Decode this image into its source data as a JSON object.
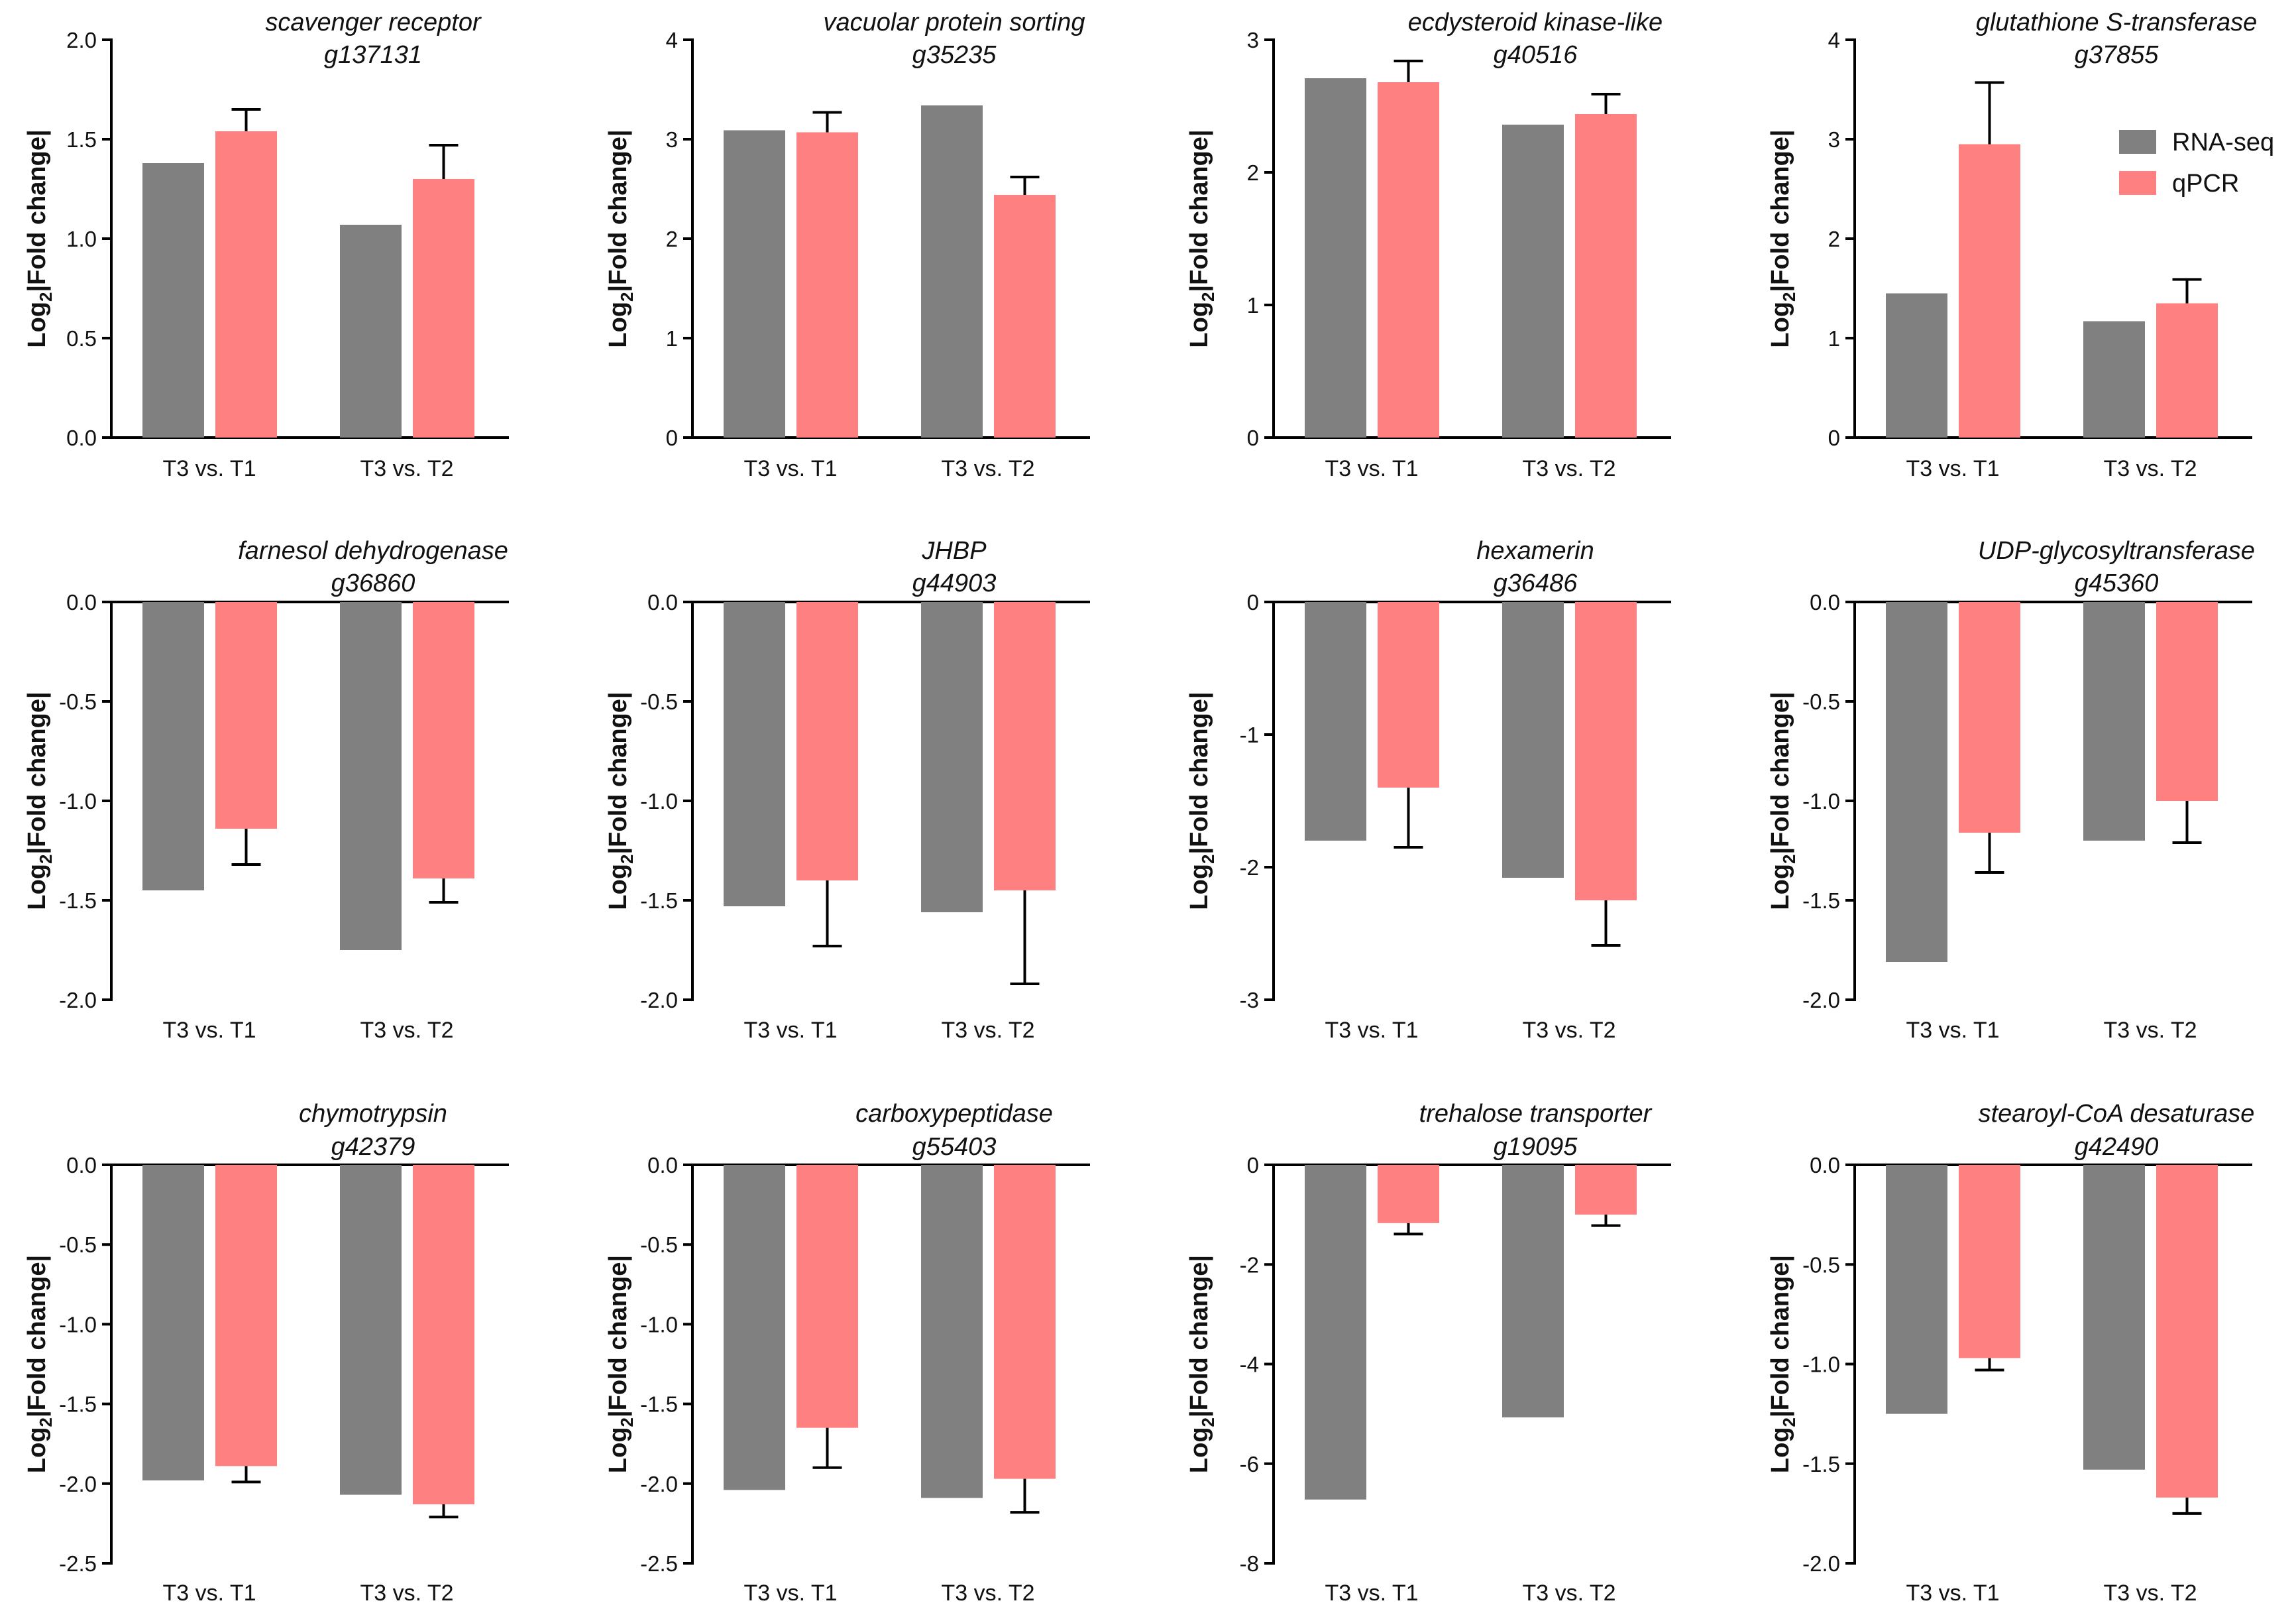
{
  "colors": {
    "rnaseq": "#808080",
    "qpcr": "#ff8080"
  },
  "legend": [
    {
      "name": "RNA-seq",
      "color": "#808080"
    },
    {
      "name": "qPCR",
      "color": "#ff8080"
    }
  ],
  "chart_data": [
    {
      "type": "bar",
      "title": "scavenger receptor",
      "subtitle": "g137131",
      "ylabel_base": "Log",
      "ylabel_sub": "2",
      "ylabel_rest": "|Fold change|",
      "categories": [
        "T3 vs. T1",
        "T3 vs. T2"
      ],
      "ylim": [
        0,
        2
      ],
      "yticks": [
        0,
        0.5,
        1,
        1.5,
        2
      ],
      "tick_labels": [
        "0.0",
        "0.5",
        "1.0",
        "1.5",
        "2.0"
      ],
      "series": [
        {
          "name": "RNA-seq",
          "values": [
            1.38,
            1.07
          ]
        },
        {
          "name": "qPCR",
          "values": [
            1.54,
            1.3
          ],
          "errors": [
            0.11,
            0.17
          ]
        }
      ]
    },
    {
      "type": "bar",
      "title": "vacuolar protein sorting",
      "subtitle": "g35235",
      "ylabel_base": "Log",
      "ylabel_sub": "2",
      "ylabel_rest": "|Fold change|",
      "categories": [
        "T3 vs. T1",
        "T3 vs. T2"
      ],
      "ylim": [
        0,
        4
      ],
      "yticks": [
        0,
        1,
        2,
        3,
        4
      ],
      "tick_labels": [
        "0",
        "1",
        "2",
        "3",
        "4"
      ],
      "series": [
        {
          "name": "RNA-seq",
          "values": [
            3.09,
            3.34
          ]
        },
        {
          "name": "qPCR",
          "values": [
            3.07,
            2.44
          ],
          "errors": [
            0.2,
            0.18
          ]
        }
      ]
    },
    {
      "type": "bar",
      "title": "ecdysteroid kinase-like",
      "subtitle": "g40516",
      "ylabel_base": "Log",
      "ylabel_sub": "2",
      "ylabel_rest": "|Fold change|",
      "categories": [
        "T3 vs. T1",
        "T3 vs. T2"
      ],
      "ylim": [
        0,
        3
      ],
      "yticks": [
        0,
        1,
        2,
        3
      ],
      "tick_labels": [
        "0",
        "1",
        "2",
        "3"
      ],
      "series": [
        {
          "name": "RNA-seq",
          "values": [
            2.71,
            2.36
          ]
        },
        {
          "name": "qPCR",
          "values": [
            2.68,
            2.44
          ],
          "errors": [
            0.16,
            0.15
          ]
        }
      ]
    },
    {
      "type": "bar",
      "title": "glutathione S-transferase",
      "subtitle": "g37855",
      "ylabel_base": "Log",
      "ylabel_sub": "2",
      "ylabel_rest": "|Fold change|",
      "categories": [
        "T3 vs. T1",
        "T3 vs. T2"
      ],
      "ylim": [
        0,
        4
      ],
      "yticks": [
        0,
        1,
        2,
        3,
        4
      ],
      "tick_labels": [
        "0",
        "1",
        "2",
        "3",
        "4"
      ],
      "legend_position": "top-right",
      "series": [
        {
          "name": "RNA-seq",
          "values": [
            1.45,
            1.17
          ]
        },
        {
          "name": "qPCR",
          "values": [
            2.95,
            1.35
          ],
          "errors": [
            0.62,
            0.24
          ]
        }
      ]
    },
    {
      "type": "bar",
      "title": "farnesol dehydrogenase",
      "subtitle": "g36860",
      "ylabel_base": "Log",
      "ylabel_sub": "2",
      "ylabel_rest": "|Fold change|",
      "categories": [
        "T3 vs. T1",
        "T3 vs. T2"
      ],
      "ylim": [
        -2,
        0
      ],
      "yticks": [
        0,
        -0.5,
        -1,
        -1.5,
        -2
      ],
      "tick_labels": [
        "0.0",
        "-0.5",
        "-1.0",
        "-1.5",
        "-2.0"
      ],
      "series": [
        {
          "name": "RNA-seq",
          "values": [
            -1.45,
            -1.75
          ]
        },
        {
          "name": "qPCR",
          "values": [
            -1.14,
            -1.39
          ],
          "errors": [
            0.18,
            0.12
          ]
        }
      ]
    },
    {
      "type": "bar",
      "title": "JHBP",
      "subtitle": "g44903",
      "ylabel_base": "Log",
      "ylabel_sub": "2",
      "ylabel_rest": "|Fold change|",
      "categories": [
        "T3 vs. T1",
        "T3 vs. T2"
      ],
      "ylim": [
        -2,
        0
      ],
      "yticks": [
        0,
        -0.5,
        -1,
        -1.5,
        -2
      ],
      "tick_labels": [
        "0.0",
        "-0.5",
        "-1.0",
        "-1.5",
        "-2.0"
      ],
      "series": [
        {
          "name": "RNA-seq",
          "values": [
            -1.53,
            -1.56
          ]
        },
        {
          "name": "qPCR",
          "values": [
            -1.4,
            -1.45
          ],
          "errors": [
            0.33,
            0.47
          ]
        }
      ]
    },
    {
      "type": "bar",
      "title": "hexamerin",
      "subtitle": "g36486",
      "ylabel_base": "Log",
      "ylabel_sub": "2",
      "ylabel_rest": "|Fold change|",
      "categories": [
        "T3 vs. T1",
        "T3 vs. T2"
      ],
      "ylim": [
        -3,
        0
      ],
      "yticks": [
        0,
        -1,
        -2,
        -3
      ],
      "tick_labels": [
        "0",
        "-1",
        "-2",
        "-3"
      ],
      "series": [
        {
          "name": "RNA-seq",
          "values": [
            -1.8,
            -2.08
          ]
        },
        {
          "name": "qPCR",
          "values": [
            -1.4,
            -2.25
          ],
          "errors": [
            0.45,
            0.34
          ]
        }
      ]
    },
    {
      "type": "bar",
      "title": "UDP-glycosyltransferase",
      "subtitle": "g45360",
      "ylabel_base": "Log",
      "ylabel_sub": "2",
      "ylabel_rest": "|Fold change|",
      "categories": [
        "T3 vs. T1",
        "T3 vs. T2"
      ],
      "ylim": [
        -2,
        0
      ],
      "yticks": [
        0,
        -0.5,
        -1,
        -1.5,
        -2
      ],
      "tick_labels": [
        "0.0",
        "-0.5",
        "-1.0",
        "-1.5",
        "-2.0"
      ],
      "series": [
        {
          "name": "RNA-seq",
          "values": [
            -1.81,
            -1.2
          ]
        },
        {
          "name": "qPCR",
          "values": [
            -1.16,
            -1.0
          ],
          "errors": [
            0.2,
            0.21
          ]
        }
      ]
    },
    {
      "type": "bar",
      "title": "chymotrypsin",
      "subtitle": "g42379",
      "ylabel_base": "Log",
      "ylabel_sub": "2",
      "ylabel_rest": "|Fold change|",
      "categories": [
        "T3 vs. T1",
        "T3 vs. T2"
      ],
      "ylim": [
        -2.5,
        0
      ],
      "yticks": [
        0,
        -0.5,
        -1,
        -1.5,
        -2,
        -2.5
      ],
      "tick_labels": [
        "0.0",
        "-0.5",
        "-1.0",
        "-1.5",
        "-2.0",
        "-2.5"
      ],
      "series": [
        {
          "name": "RNA-seq",
          "values": [
            -1.98,
            -2.07
          ]
        },
        {
          "name": "qPCR",
          "values": [
            -1.89,
            -2.13
          ],
          "errors": [
            0.1,
            0.08
          ]
        }
      ]
    },
    {
      "type": "bar",
      "title": "carboxypeptidase",
      "subtitle": "g55403",
      "ylabel_base": "Log",
      "ylabel_sub": "2",
      "ylabel_rest": "|Fold change|",
      "categories": [
        "T3 vs. T1",
        "T3 vs. T2"
      ],
      "ylim": [
        -2.5,
        0
      ],
      "yticks": [
        0,
        -0.5,
        -1,
        -1.5,
        -2,
        -2.5
      ],
      "tick_labels": [
        "0.0",
        "-0.5",
        "-1.0",
        "-1.5",
        "-2.0",
        "-2.5"
      ],
      "series": [
        {
          "name": "RNA-seq",
          "values": [
            -2.04,
            -2.09
          ]
        },
        {
          "name": "qPCR",
          "values": [
            -1.65,
            -1.97
          ],
          "errors": [
            0.25,
            0.21
          ]
        }
      ]
    },
    {
      "type": "bar",
      "title": "trehalose transporter",
      "subtitle": "g19095",
      "ylabel_base": "Log",
      "ylabel_sub": "2",
      "ylabel_rest": "|Fold change|",
      "categories": [
        "T3 vs. T1",
        "T3 vs. T2"
      ],
      "ylim": [
        -8,
        0
      ],
      "yticks": [
        0,
        -2,
        -4,
        -6,
        -8
      ],
      "tick_labels": [
        "0",
        "-2",
        "-4",
        "-6",
        "-8"
      ],
      "series": [
        {
          "name": "RNA-seq",
          "values": [
            -6.72,
            -5.07
          ]
        },
        {
          "name": "qPCR",
          "values": [
            -1.17,
            -1.0
          ],
          "errors": [
            0.22,
            0.22
          ]
        }
      ]
    },
    {
      "type": "bar",
      "title": "stearoyl-CoA desaturase",
      "subtitle": "g42490",
      "ylabel_base": "Log",
      "ylabel_sub": "2",
      "ylabel_rest": "|Fold change|",
      "categories": [
        "T3 vs. T1",
        "T3 vs. T2"
      ],
      "ylim": [
        -2,
        0
      ],
      "yticks": [
        0,
        -0.5,
        -1,
        -1.5,
        -2
      ],
      "tick_labels": [
        "0.0",
        "-0.5",
        "-1.0",
        "-1.5",
        "-2.0"
      ],
      "series": [
        {
          "name": "RNA-seq",
          "values": [
            -1.25,
            -1.53
          ]
        },
        {
          "name": "qPCR",
          "values": [
            -0.97,
            -1.67
          ],
          "errors": [
            0.06,
            0.08
          ]
        }
      ]
    }
  ]
}
